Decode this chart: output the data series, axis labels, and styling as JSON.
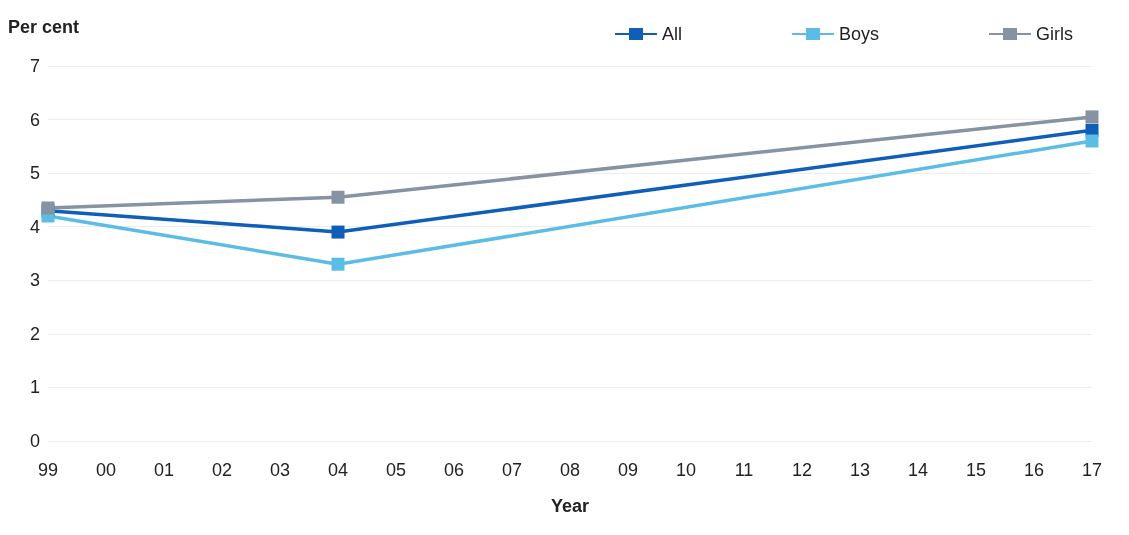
{
  "chart_data": {
    "type": "line",
    "ylabel": "Per cent",
    "xlabel": "Year",
    "categories": [
      "99",
      "00",
      "01",
      "02",
      "03",
      "04",
      "05",
      "06",
      "07",
      "08",
      "09",
      "10",
      "11",
      "12",
      "13",
      "14",
      "15",
      "16",
      "17"
    ],
    "series": [
      {
        "name": "All",
        "color": "#0f5fb8",
        "values": [
          4.3,
          null,
          null,
          null,
          null,
          3.9,
          null,
          null,
          null,
          null,
          null,
          null,
          null,
          null,
          null,
          null,
          null,
          null,
          5.8
        ]
      },
      {
        "name": "Boys",
        "color": "#5bbde6",
        "values": [
          4.2,
          null,
          null,
          null,
          null,
          3.3,
          null,
          null,
          null,
          null,
          null,
          null,
          null,
          null,
          null,
          null,
          null,
          null,
          5.6
        ]
      },
      {
        "name": "Girls",
        "color": "#8593a3",
        "values": [
          4.35,
          null,
          null,
          null,
          null,
          4.55,
          null,
          null,
          null,
          null,
          null,
          null,
          null,
          null,
          null,
          null,
          null,
          null,
          6.05
        ]
      }
    ],
    "ylim": [
      0,
      7
    ],
    "yticks": [
      0,
      1,
      2,
      3,
      4,
      5,
      6,
      7
    ],
    "grid": "y",
    "legend": "top right",
    "marker": "square",
    "line_style": "solid"
  }
}
